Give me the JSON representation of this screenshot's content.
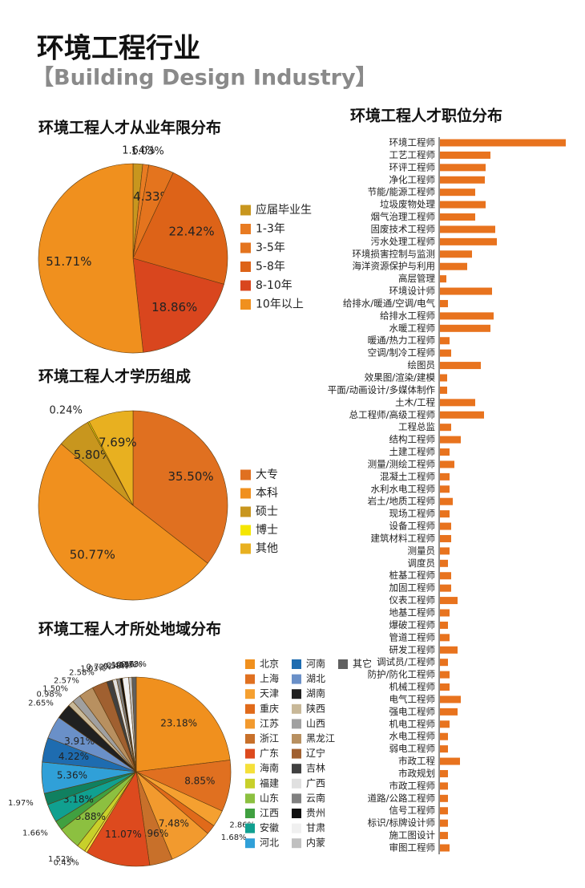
{
  "header": {
    "title": "环境工程行业",
    "subtitle": "【Building Design Industry】"
  },
  "chart_data": [
    {
      "type": "pie",
      "title": "环境工程人才从业年限分布",
      "categories": [
        "应届毕业生",
        "1-3年",
        "3-5年",
        "5-8年",
        "8-10年",
        "10年以上"
      ],
      "values": [
        1.64,
        1.03,
        4.33,
        22.42,
        18.86,
        51.71
      ],
      "value_labels": [
        "1.64%",
        "1.03%",
        "4.33%",
        "22.42%",
        "18.86%",
        "51.71%"
      ],
      "colors": [
        "#c8961e",
        "#e87b22",
        "#e4741e",
        "#dd6318",
        "#d9461e",
        "#f0901e"
      ]
    },
    {
      "type": "pie",
      "title": "环境工程人才学历组成",
      "categories": [
        "大专",
        "本科",
        "硕士",
        "博士",
        "其他"
      ],
      "values": [
        35.5,
        50.77,
        5.8,
        0.24,
        7.69
      ],
      "value_labels": [
        "35.50%",
        "50.77%",
        "5.80%",
        "0.24%",
        "7.69%"
      ],
      "colors": [
        "#e07020",
        "#f0901e",
        "#c8961e",
        "#f5e600",
        "#e8b020"
      ]
    },
    {
      "type": "pie",
      "title": "环境工程人才所处地域分布",
      "categories": [
        "北京",
        "上海",
        "天津",
        "重庆",
        "江苏",
        "浙江",
        "广东",
        "海南",
        "福建",
        "山东",
        "江西",
        "安徽",
        null,
        "河北",
        "河南",
        "湖北",
        "湖南",
        "陕西",
        "山西",
        "黑龙江",
        "辽宁",
        "吉林",
        "广西",
        "云南",
        "贵州",
        "甘肃",
        "内蒙",
        "其它"
      ],
      "values": [
        23.18,
        8.85,
        2.86,
        1.68,
        7.48,
        3.96,
        11.07,
        0.45,
        1.52,
        3.88,
        1.66,
        3.18,
        1.97,
        5.36,
        4.22,
        3.91,
        2.65,
        0.98,
        1.5,
        2.57,
        2.58,
        1.03,
        0.72,
        0.58,
        0.41,
        1.07,
        0.56,
        0.73
      ],
      "value_labels": [
        "23.18%",
        "8.85%",
        "2.86%",
        "1.68%",
        "7.48%",
        "3.96%",
        "11.07%",
        "0.45%",
        "1.52%",
        "3.88%",
        "1.66%",
        "3.18%",
        "1.97%",
        "5.36%",
        "4.22%",
        "3.91%",
        "2.65%",
        "0.98%",
        "1.50%",
        "2.57%",
        "2.58%",
        "1.03%",
        "0.72%",
        "0.58%",
        "0.41%",
        "1.07%",
        "0.56%",
        "0.73%"
      ],
      "colors": [
        "#f0901e",
        "#e07020",
        "#f5a030",
        "#e06a1a",
        "#f29a2e",
        "#c8702a",
        "#dd4a1e",
        "#f5e03a",
        "#c8d02a",
        "#8cc040",
        "#40a040",
        "#10a090",
        "#108060",
        "#30a0d8",
        "#1e6cb0",
        "#6a90c8",
        "#202020",
        "#c8b898",
        "#a0a0a0",
        "#b89060",
        "#a06030",
        "#404040",
        "#e0e0e0",
        "#808080",
        "#101010",
        "#f0f0f0",
        "#c0c0c0",
        "#606060"
      ]
    },
    {
      "type": "bar",
      "orientation": "horizontal",
      "title": "环境工程人才职位分布",
      "color": "#e8731e",
      "categories": [
        "环境工程师",
        "工艺工程师",
        "环评工程师",
        "净化工程师",
        "节能/能源工程师",
        "垃圾废物处理",
        "烟气治理工程师",
        "固废技术工程师",
        "污水处理工程师",
        "环境损害控制与监测",
        "海洋资源保护与利用",
        "高层管理",
        "环境设计师",
        "给排水/暖通/空调/电气",
        "给排水工程师",
        "水暖工程师",
        "暖通/热力工程师",
        "空调/制冷工程师",
        "绘图员",
        "效果图/渲染/建模",
        "平面/动画设计/多媒体制作",
        "土木/工程",
        "总工程师/高级工程师",
        "工程总监",
        "结构工程师",
        "土建工程师",
        "测量/测绘工程师",
        "混凝土工程师",
        "水利水电工程师",
        "岩土/地质工程师",
        "现场工程师",
        "设备工程师",
        "建筑材料工程师",
        "测量员",
        "调度员",
        "桩基工程师",
        "加固工程师",
        "仪表工程师",
        "地基工程师",
        "爆破工程师",
        "管道工程师",
        "研发工程师",
        "调试员/工程师",
        "防护/防化工程师",
        "机械工程师",
        "电气工程师",
        "强电工程师",
        "机电工程师",
        "水电工程师",
        "弱电工程师",
        "市政工程",
        "市政规划",
        "市政工程师",
        "道路/公路工程师",
        "信号工程师",
        "标识/标牌设计师",
        "施工图设计",
        "审图工程师"
      ],
      "values": [
        157,
        63,
        57,
        56,
        44,
        57,
        44,
        69,
        71,
        40,
        34,
        8,
        65,
        10,
        67,
        63,
        12,
        14,
        51,
        9,
        9,
        44,
        55,
        14,
        26,
        12,
        18,
        12,
        12,
        16,
        12,
        14,
        14,
        12,
        10,
        14,
        14,
        22,
        12,
        10,
        12,
        22,
        10,
        12,
        12,
        26,
        22,
        12,
        10,
        10,
        25,
        10,
        10,
        10,
        10,
        10,
        10,
        12
      ]
    }
  ]
}
